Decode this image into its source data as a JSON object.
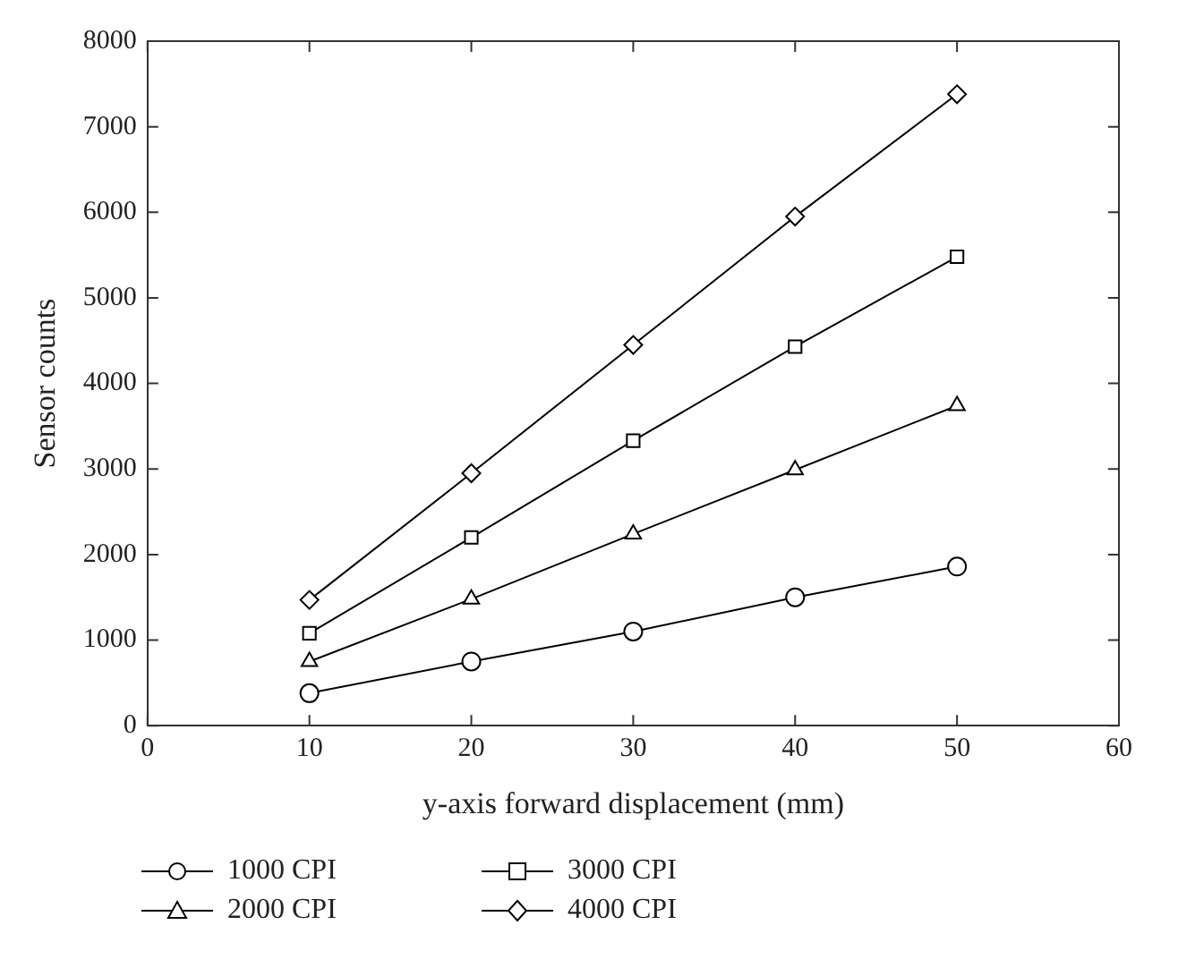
{
  "chart_data": {
    "type": "line",
    "xlabel": "y-axis forward displacement (mm)",
    "ylabel": "Sensor counts",
    "x": [
      10,
      20,
      30,
      40,
      50
    ],
    "xlim": [
      0,
      60
    ],
    "xticks": [
      0,
      10,
      20,
      30,
      40,
      50,
      60
    ],
    "ylim": [
      0,
      8000
    ],
    "yticks": [
      0,
      1000,
      2000,
      3000,
      4000,
      5000,
      6000,
      7000,
      8000
    ],
    "legend": "bottom",
    "line_style": "solid",
    "series": [
      {
        "name": "1000 CPI",
        "color": "#000000",
        "marker": "circle",
        "values": [
          380,
          750,
          1100,
          1500,
          1860
        ]
      },
      {
        "name": "2000 CPI",
        "color": "#000000",
        "marker": "triangle",
        "values": [
          750,
          1480,
          2240,
          2990,
          3740
        ]
      },
      {
        "name": "3000 CPI",
        "color": "#000000",
        "marker": "square",
        "values": [
          1080,
          2200,
          3330,
          4430,
          5480
        ]
      },
      {
        "name": "4000 CPI",
        "color": "#000000",
        "marker": "diamond",
        "values": [
          1470,
          2950,
          4450,
          5950,
          7380
        ]
      }
    ]
  }
}
